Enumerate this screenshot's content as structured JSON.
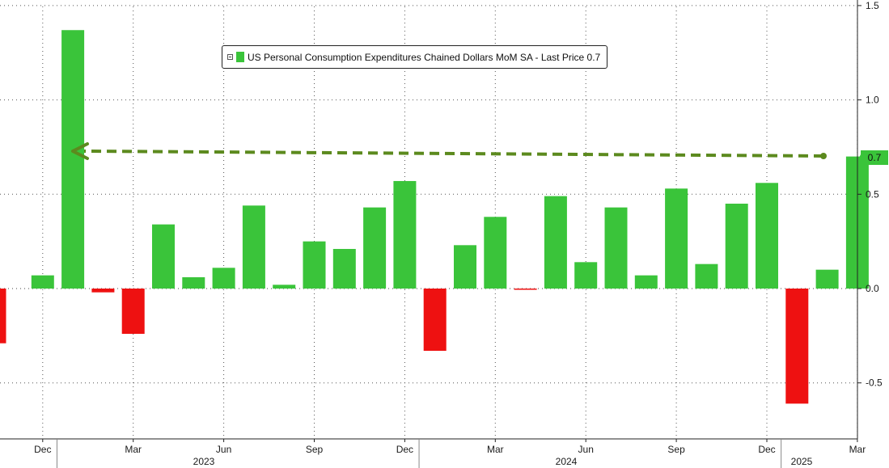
{
  "legend": {
    "label": "US Personal Consumption Expenditures Chained Dollars MoM SA - Last Price 0.7",
    "color": "#3ac43a"
  },
  "last_value_tag": "0.7",
  "colors": {
    "positive": "#3ac43a",
    "negative": "#ee1111",
    "arrow": "#5c8a1e",
    "tag_bg": "#3ac43a"
  },
  "chart_data": {
    "type": "bar",
    "title": "",
    "xlabel": "",
    "ylabel": "",
    "ylim": [
      -0.8,
      1.5
    ],
    "yticks": [
      1.5,
      1.0,
      0.5,
      0.0,
      -0.5
    ],
    "ytick_labels": [
      "1.5",
      "1.0",
      "0.5",
      "0.0",
      "-0.5"
    ],
    "grid": true,
    "legend_position": "top-center",
    "categories": [
      "2022-11",
      "2022-12",
      "2023-01",
      "2023-02",
      "2023-03",
      "2023-04",
      "2023-05",
      "2023-06",
      "2023-07",
      "2023-08",
      "2023-09",
      "2023-10",
      "2023-11",
      "2023-12",
      "2024-01",
      "2024-02",
      "2024-03",
      "2024-04",
      "2024-05",
      "2024-06",
      "2024-07",
      "2024-08",
      "2024-09",
      "2024-10",
      "2024-11",
      "2024-12",
      "2025-01",
      "2025-02",
      "2025-03"
    ],
    "series": [
      {
        "name": "US Personal Consumption Expenditures Chained Dollars MoM SA",
        "values": [
          -0.29,
          0.07,
          1.37,
          -0.02,
          -0.24,
          0.34,
          0.06,
          0.11,
          0.44,
          0.02,
          0.25,
          0.21,
          0.43,
          0.57,
          -0.33,
          0.23,
          0.38,
          -0.003,
          0.49,
          0.14,
          0.43,
          0.07,
          0.53,
          0.13,
          0.45,
          0.56,
          -0.61,
          0.1,
          0.7
        ]
      }
    ],
    "x_month_labels": [
      "Dec",
      "Mar",
      "Jun",
      "Sep",
      "Dec",
      "Mar",
      "Jun",
      "Sep",
      "Dec",
      "Mar"
    ],
    "x_year_labels": [
      "2023",
      "2024",
      "2025"
    ],
    "reference_line": {
      "value": 0.7,
      "from_category": "2023-01",
      "to_category": "2025-03",
      "style": "dashed-arrow"
    }
  }
}
